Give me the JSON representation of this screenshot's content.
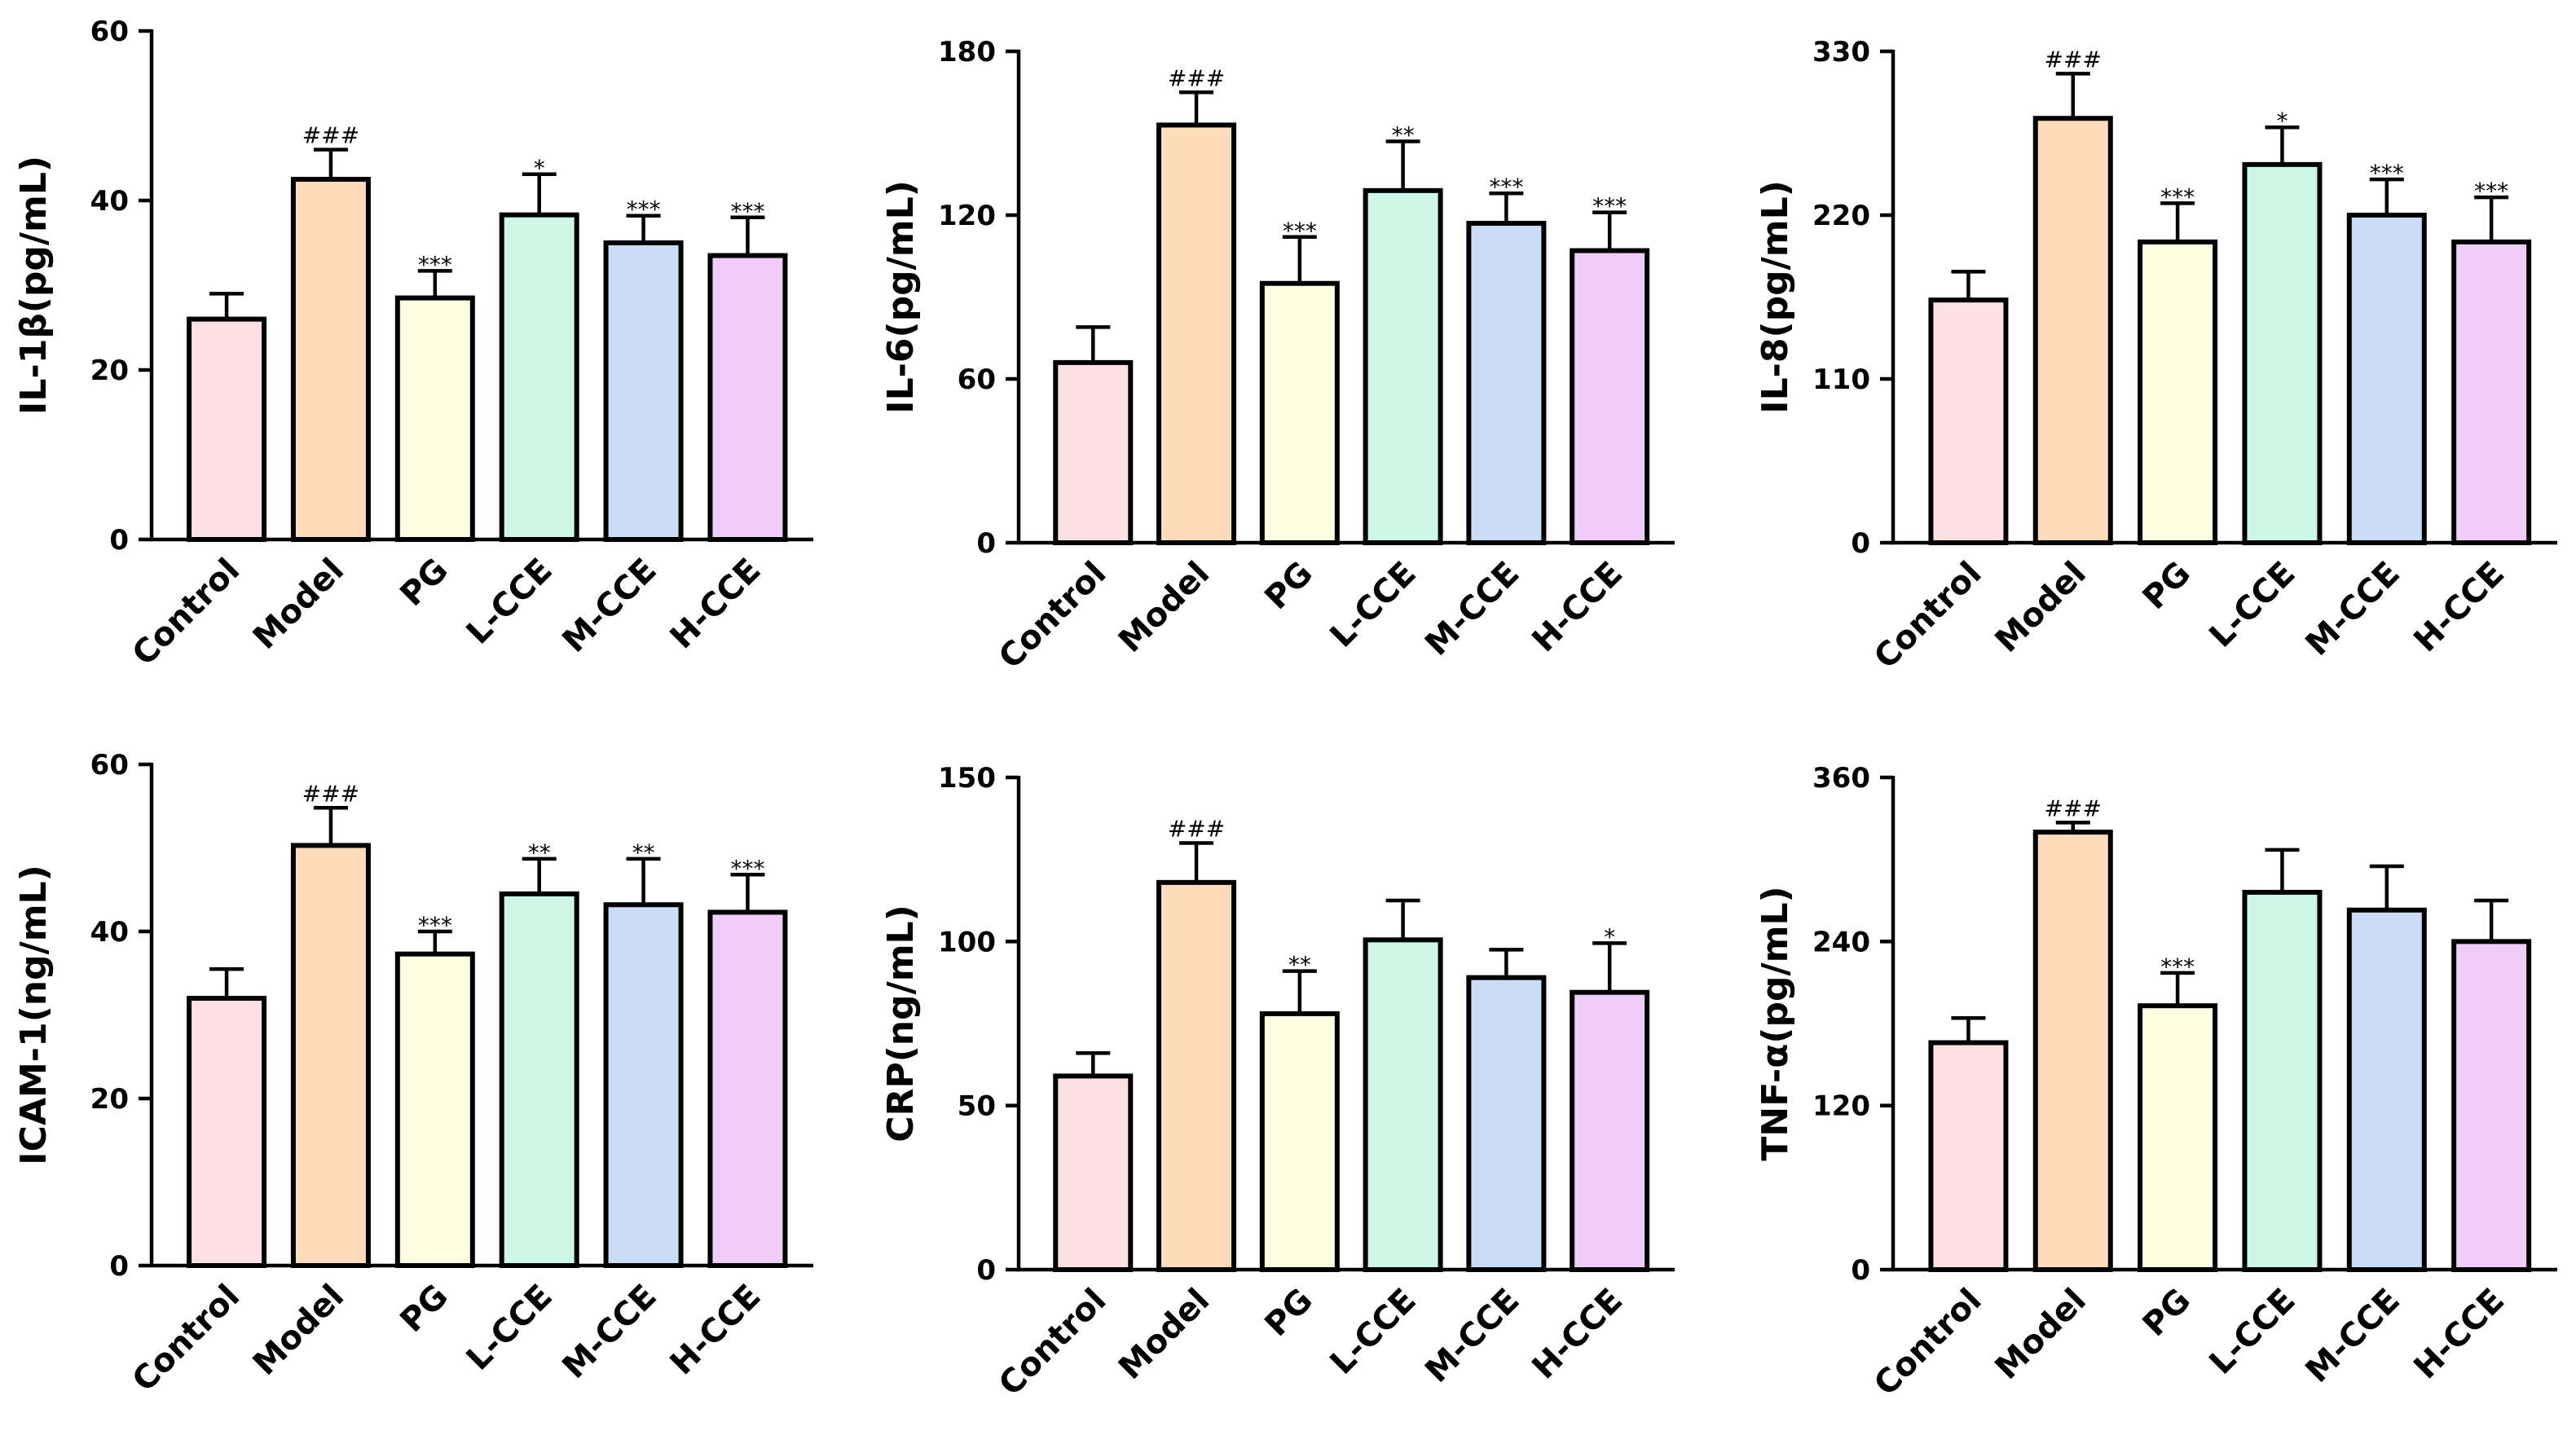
{
  "colors": {
    "Control": "#fde0e2",
    "Model": "#fddcbc",
    "PG": "#fefee3",
    "L-CCE": "#ccf6e6",
    "M-CCE": "#c9ddf8",
    "H-CCE": "#efcdf8"
  },
  "chart_data": [
    {
      "type": "bar",
      "ylabel": "IL-1β(pg/mL)",
      "categories": [
        "Control",
        "Model",
        "PG",
        "L-CCE",
        "M-CCE",
        "H-CCE"
      ],
      "values": [
        26,
        42.5,
        28.5,
        38.3,
        35,
        33.5
      ],
      "errors": [
        3,
        3.5,
        3.2,
        4.8,
        3.2,
        4.5
      ],
      "significance": [
        "",
        "###",
        "***",
        "*",
        "***",
        "***"
      ],
      "ylim": [
        0,
        60
      ],
      "yticks": [
        0,
        20,
        40,
        60
      ]
    },
    {
      "type": "bar",
      "ylabel": "IL-6(pg/mL)",
      "categories": [
        "Control",
        "Model",
        "PG",
        "L-CCE",
        "M-CCE",
        "H-CCE"
      ],
      "values": [
        66,
        153,
        95,
        129,
        117,
        107
      ],
      "errors": [
        13,
        12,
        17,
        18,
        11,
        14
      ],
      "significance": [
        "",
        "###",
        "***",
        "**",
        "***",
        "***"
      ],
      "ylim": [
        0,
        180
      ],
      "yticks": [
        0,
        60,
        120,
        180
      ]
    },
    {
      "type": "bar",
      "ylabel": "IL-8(pg/mL)",
      "categories": [
        "Control",
        "Model",
        "PG",
        "L-CCE",
        "M-CCE",
        "H-CCE"
      ],
      "values": [
        163,
        285,
        202,
        254,
        220,
        202
      ],
      "errors": [
        19,
        30,
        26,
        25,
        24,
        30
      ],
      "significance": [
        "",
        "###",
        "***",
        "*",
        "***",
        "***"
      ],
      "ylim": [
        0,
        330
      ],
      "yticks": [
        0,
        110,
        220,
        330
      ]
    },
    {
      "type": "bar",
      "ylabel": "ICAM-1(ng/mL)",
      "categories": [
        "Control",
        "Model",
        "PG",
        "L-CCE",
        "M-CCE",
        "H-CCE"
      ],
      "values": [
        32,
        50.3,
        37.3,
        44.5,
        43.2,
        42.3
      ],
      "errors": [
        3.5,
        4.5,
        2.7,
        4.2,
        5.5,
        4.5
      ],
      "significance": [
        "",
        "###",
        "***",
        "**",
        "**",
        "***"
      ],
      "ylim": [
        0,
        60
      ],
      "yticks": [
        0,
        20,
        40,
        60
      ]
    },
    {
      "type": "bar",
      "ylabel": "CRP(ng/mL)",
      "categories": [
        "Control",
        "Model",
        "PG",
        "L-CCE",
        "M-CCE",
        "H-CCE"
      ],
      "values": [
        59,
        118,
        78,
        100.5,
        89,
        84.5
      ],
      "errors": [
        7,
        12,
        13,
        12,
        8.5,
        15
      ],
      "significance": [
        "",
        "###",
        "**",
        "",
        "",
        "*"
      ],
      "ylim": [
        0,
        150
      ],
      "yticks": [
        0,
        50,
        100,
        150
      ]
    },
    {
      "type": "bar",
      "ylabel": "TNF-α(pg/mL)",
      "categories": [
        "Control",
        "Model",
        "PG",
        "L-CCE",
        "M-CCE",
        "H-CCE"
      ],
      "values": [
        166,
        320,
        193,
        276,
        263,
        240
      ],
      "errors": [
        18,
        7,
        24,
        31,
        32,
        30
      ],
      "significance": [
        "",
        "###",
        "***",
        "",
        "",
        ""
      ],
      "ylim": [
        0,
        360
      ],
      "yticks": [
        0,
        120,
        240,
        360
      ]
    }
  ]
}
